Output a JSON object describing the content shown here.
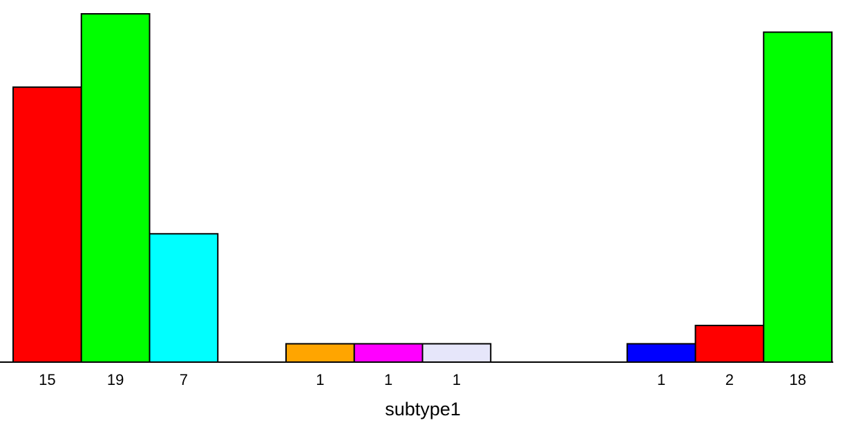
{
  "chart_data": {
    "type": "bar",
    "xlabel": "subtype1",
    "ylabel": "",
    "title": "",
    "ylim": [
      0,
      19
    ],
    "axis": "none",
    "grid": false,
    "legend": "none",
    "bars": [
      {
        "value": 15,
        "label": "15",
        "color": "#ff0000",
        "slot": 0
      },
      {
        "value": 19,
        "label": "19",
        "color": "#00ff00",
        "slot": 1
      },
      {
        "value": 7,
        "label": "7",
        "color": "#00ffff",
        "slot": 2
      },
      {
        "value": 0,
        "label": "",
        "color": "#ffffff",
        "slot": 3,
        "empty": true
      },
      {
        "value": 1,
        "label": "1",
        "color": "#ffa500",
        "slot": 4
      },
      {
        "value": 1,
        "label": "1",
        "color": "#ff00ff",
        "slot": 5
      },
      {
        "value": 1,
        "label": "1",
        "color": "#e6e6fa",
        "slot": 6
      },
      {
        "value": 0,
        "label": "",
        "color": "#ffffff",
        "slot": 7,
        "empty": true
      },
      {
        "value": 0,
        "label": "",
        "color": "#ffffff",
        "slot": 8,
        "empty": true
      },
      {
        "value": 1,
        "label": "1",
        "color": "#0000ff",
        "slot": 9
      },
      {
        "value": 2,
        "label": "2",
        "color": "#ff0000",
        "slot": 10
      },
      {
        "value": 18,
        "label": "18",
        "color": "#00ff00",
        "slot": 11
      }
    ]
  }
}
